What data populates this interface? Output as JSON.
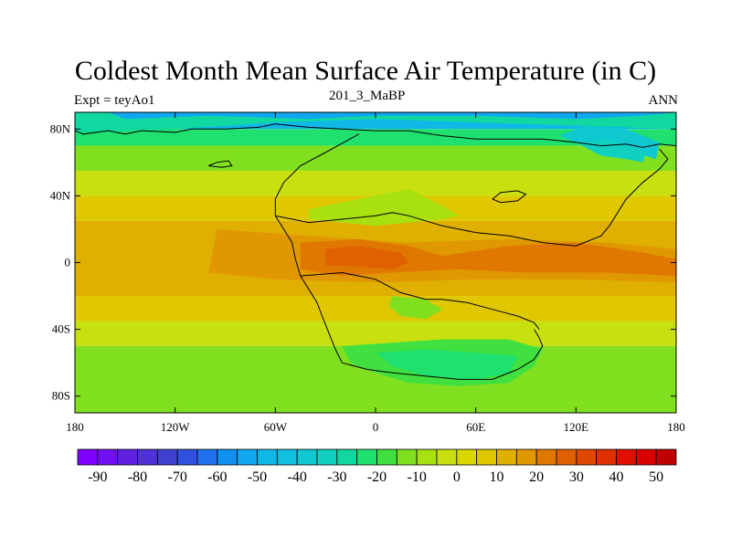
{
  "header": {
    "title": "Coldest Month Mean Surface Air Temperature (in C)",
    "subtitle_left": "Expt = teyAo1",
    "subtitle_center": "201_3_MaBP",
    "subtitle_right": "ANN"
  },
  "map": {
    "projection": "cylindrical-equidistant",
    "lon_range": [
      -180,
      180
    ],
    "lat_range": [
      -90,
      90
    ],
    "x_ticks": [
      {
        "lon": -180,
        "label": "180"
      },
      {
        "lon": -120,
        "label": "120W"
      },
      {
        "lon": -60,
        "label": "60W"
      },
      {
        "lon": 0,
        "label": "0"
      },
      {
        "lon": 60,
        "label": "60E"
      },
      {
        "lon": 120,
        "label": "120E"
      },
      {
        "lon": 180,
        "label": "180"
      }
    ],
    "y_ticks": [
      {
        "lat": 80,
        "label": "80N"
      },
      {
        "lat": 40,
        "label": "40N"
      },
      {
        "lat": 0,
        "label": "0"
      },
      {
        "lat": -40,
        "label": "40S"
      },
      {
        "lat": -80,
        "label": "80S"
      }
    ]
  },
  "colorbar": {
    "min": -95,
    "max": 55,
    "step": 5,
    "colors": [
      "#7f00ff",
      "#7010f0",
      "#6020e0",
      "#5030d8",
      "#4040d0",
      "#3050e0",
      "#2070f0",
      "#1090f0",
      "#10a8f0",
      "#10b8e8",
      "#10c0e0",
      "#10c8d0",
      "#10d0c0",
      "#10d8a0",
      "#20e070",
      "#40e040",
      "#80e020",
      "#a8e010",
      "#c8e010",
      "#d8d800",
      "#e0c800",
      "#e0b000",
      "#e09800",
      "#e07800",
      "#e06000",
      "#e04800",
      "#e03000",
      "#e01000",
      "#d80000",
      "#c00000"
    ],
    "labels": [
      {
        "value": -90,
        "label": "-90"
      },
      {
        "value": -80,
        "label": "-80"
      },
      {
        "value": -70,
        "label": "-70"
      },
      {
        "value": -60,
        "label": "-60"
      },
      {
        "value": -50,
        "label": "-50"
      },
      {
        "value": -40,
        "label": "-40"
      },
      {
        "value": -30,
        "label": "-30"
      },
      {
        "value": -20,
        "label": "-20"
      },
      {
        "value": -10,
        "label": "-10"
      },
      {
        "value": 0,
        "label": "0"
      },
      {
        "value": 10,
        "label": "10"
      },
      {
        "value": 20,
        "label": "20"
      },
      {
        "value": 30,
        "label": "30"
      },
      {
        "value": 40,
        "label": "40"
      },
      {
        "value": 50,
        "label": "50"
      }
    ]
  },
  "temperature_bands": [
    {
      "lat_top": 90,
      "lat_bottom": 80,
      "value": -30,
      "color": "#10b8e8"
    },
    {
      "lat_top": 80,
      "lat_bottom": 70,
      "value": -10,
      "color": "#20e070"
    },
    {
      "lat_top": 70,
      "lat_bottom": 55,
      "value": 0,
      "color": "#80e020"
    },
    {
      "lat_top": 55,
      "lat_bottom": 40,
      "value": 10,
      "color": "#c8e010"
    },
    {
      "lat_top": 40,
      "lat_bottom": 25,
      "value": 20,
      "color": "#e0c800"
    },
    {
      "lat_top": 25,
      "lat_bottom": -20,
      "value": 25,
      "color": "#e0b000"
    },
    {
      "lat_top": -20,
      "lat_bottom": -35,
      "value": 20,
      "color": "#e0c800"
    },
    {
      "lat_top": -35,
      "lat_bottom": -50,
      "value": 10,
      "color": "#c8e010"
    },
    {
      "lat_top": -50,
      "lat_bottom": -90,
      "value": 0,
      "color": "#80e020"
    }
  ],
  "temperature_regions": [
    {
      "value": -15,
      "color": "#10d8a0",
      "points": [
        [
          -180,
          78
        ],
        [
          -120,
          80
        ],
        [
          -60,
          84
        ],
        [
          0,
          86
        ],
        [
          60,
          84
        ],
        [
          120,
          82
        ],
        [
          180,
          80
        ],
        [
          180,
          90
        ],
        [
          -180,
          90
        ]
      ]
    },
    {
      "value": -35,
      "color": "#10a8f0",
      "points": [
        [
          -160,
          90
        ],
        [
          -150,
          86
        ],
        [
          -100,
          88
        ],
        [
          -40,
          86
        ],
        [
          0,
          88
        ],
        [
          60,
          88
        ],
        [
          120,
          86
        ],
        [
          160,
          88
        ],
        [
          180,
          90
        ]
      ]
    },
    {
      "value": -25,
      "color": "#10c8d0",
      "points": [
        [
          110,
          76
        ],
        [
          130,
          68
        ],
        [
          155,
          66
        ],
        [
          168,
          62
        ],
        [
          170,
          72
        ],
        [
          150,
          80
        ],
        [
          125,
          82
        ]
      ]
    },
    {
      "value": -20,
      "color": "#10d0c0",
      "points": [
        [
          120,
          72
        ],
        [
          135,
          64
        ],
        [
          150,
          62
        ],
        [
          160,
          60
        ],
        [
          162,
          66
        ],
        [
          140,
          74
        ]
      ]
    },
    {
      "value": 30,
      "color": "#e09800",
      "points": [
        [
          -95,
          20
        ],
        [
          -40,
          16
        ],
        [
          20,
          12
        ],
        [
          80,
          14
        ],
        [
          140,
          12
        ],
        [
          180,
          8
        ],
        [
          180,
          -12
        ],
        [
          120,
          -10
        ],
        [
          60,
          -10
        ],
        [
          0,
          -12
        ],
        [
          -60,
          -10
        ],
        [
          -100,
          -6
        ]
      ]
    },
    {
      "value": 35,
      "color": "#e07800",
      "points": [
        [
          -45,
          12
        ],
        [
          -10,
          14
        ],
        [
          20,
          10
        ],
        [
          40,
          4
        ],
        [
          80,
          10
        ],
        [
          120,
          12
        ],
        [
          160,
          6
        ],
        [
          180,
          2
        ],
        [
          180,
          -8
        ],
        [
          140,
          -6
        ],
        [
          90,
          -6
        ],
        [
          50,
          -4
        ],
        [
          10,
          -6
        ],
        [
          -20,
          -8
        ],
        [
          -45,
          -4
        ]
      ]
    },
    {
      "value": 40,
      "color": "#e06000",
      "points": [
        [
          -30,
          8
        ],
        [
          -10,
          10
        ],
        [
          15,
          6
        ],
        [
          20,
          0
        ],
        [
          10,
          -4
        ],
        [
          -15,
          -2
        ],
        [
          -30,
          -2
        ]
      ]
    },
    {
      "value": 5,
      "color": "#a8e010",
      "points": [
        [
          -40,
          32
        ],
        [
          -20,
          36
        ],
        [
          0,
          40
        ],
        [
          20,
          44
        ],
        [
          40,
          34
        ],
        [
          50,
          28
        ],
        [
          40,
          26
        ],
        [
          20,
          24
        ],
        [
          0,
          22
        ],
        [
          -20,
          24
        ],
        [
          -40,
          26
        ]
      ]
    },
    {
      "value": -5,
      "color": "#40e040",
      "points": [
        [
          -20,
          -50
        ],
        [
          10,
          -48
        ],
        [
          40,
          -46
        ],
        [
          80,
          -46
        ],
        [
          100,
          -52
        ],
        [
          95,
          -62
        ],
        [
          80,
          -72
        ],
        [
          50,
          -74
        ],
        [
          20,
          -72
        ],
        [
          0,
          -66
        ],
        [
          -15,
          -60
        ]
      ]
    },
    {
      "value": -10,
      "color": "#20e070",
      "points": [
        [
          0,
          -54
        ],
        [
          30,
          -52
        ],
        [
          60,
          -54
        ],
        [
          85,
          -56
        ],
        [
          80,
          -66
        ],
        [
          60,
          -70
        ],
        [
          30,
          -68
        ],
        [
          10,
          -62
        ]
      ]
    },
    {
      "value": 0,
      "color": "#80e020",
      "points": [
        [
          10,
          -20
        ],
        [
          30,
          -22
        ],
        [
          40,
          -28
        ],
        [
          30,
          -34
        ],
        [
          15,
          -32
        ],
        [
          8,
          -26
        ]
      ]
    }
  ],
  "coastlines": [
    {
      "name": "north-coast",
      "points": [
        [
          -180,
          79
        ],
        [
          -175,
          77
        ],
        [
          -160,
          79
        ],
        [
          -150,
          77
        ],
        [
          -140,
          79
        ],
        [
          -120,
          78
        ],
        [
          -110,
          80
        ],
        [
          -90,
          80
        ],
        [
          -70,
          81
        ],
        [
          -60,
          83
        ],
        [
          -40,
          81
        ],
        [
          -20,
          80
        ],
        [
          0,
          79
        ],
        [
          20,
          79
        ],
        [
          40,
          76
        ],
        [
          60,
          74
        ],
        [
          80,
          74
        ],
        [
          100,
          74
        ],
        [
          120,
          72
        ],
        [
          135,
          70
        ],
        [
          150,
          71
        ],
        [
          160,
          69
        ],
        [
          170,
          71
        ],
        [
          180,
          70
        ]
      ]
    },
    {
      "name": "western-margin",
      "points": [
        [
          -10,
          77
        ],
        [
          -28,
          67
        ],
        [
          -45,
          58
        ],
        [
          -55,
          48
        ],
        [
          -60,
          38
        ],
        [
          -60,
          28
        ],
        [
          -55,
          20
        ],
        [
          -50,
          12
        ],
        [
          -48,
          2
        ],
        [
          -45,
          -8
        ],
        [
          -40,
          -16
        ],
        [
          -35,
          -24
        ],
        [
          -32,
          -32
        ],
        [
          -28,
          -42
        ],
        [
          -24,
          -52
        ],
        [
          -20,
          -60
        ]
      ]
    },
    {
      "name": "south-coast",
      "points": [
        [
          -20,
          -60
        ],
        [
          -5,
          -64
        ],
        [
          10,
          -66
        ],
        [
          30,
          -68
        ],
        [
          50,
          -70
        ],
        [
          70,
          -70
        ],
        [
          85,
          -64
        ],
        [
          95,
          -58
        ],
        [
          100,
          -50
        ],
        [
          98,
          -45
        ],
        [
          95,
          -40
        ]
      ]
    },
    {
      "name": "tethys-north",
      "points": [
        [
          -60,
          28
        ],
        [
          -40,
          24
        ],
        [
          -20,
          26
        ],
        [
          0,
          28
        ],
        [
          10,
          30
        ],
        [
          20,
          28
        ],
        [
          40,
          22
        ],
        [
          60,
          18
        ],
        [
          80,
          16
        ],
        [
          100,
          12
        ],
        [
          120,
          10
        ],
        [
          135,
          16
        ],
        [
          140,
          22
        ],
        [
          145,
          30
        ],
        [
          150,
          38
        ],
        [
          160,
          48
        ],
        [
          170,
          56
        ],
        [
          175,
          62
        ],
        [
          170,
          68
        ]
      ]
    },
    {
      "name": "tethys-south",
      "points": [
        [
          -45,
          -8
        ],
        [
          -20,
          -6
        ],
        [
          0,
          -10
        ],
        [
          15,
          -18
        ],
        [
          30,
          -22
        ],
        [
          40,
          -22
        ],
        [
          55,
          -24
        ],
        [
          70,
          -28
        ],
        [
          85,
          -32
        ],
        [
          95,
          -36
        ],
        [
          98,
          -40
        ]
      ]
    },
    {
      "name": "inland-sea",
      "points": [
        [
          70,
          38
        ],
        [
          75,
          42
        ],
        [
          85,
          43
        ],
        [
          90,
          41
        ],
        [
          85,
          37
        ],
        [
          75,
          36
        ],
        [
          70,
          38
        ]
      ]
    },
    {
      "name": "island-arc",
      "points": [
        [
          -100,
          58
        ],
        [
          -95,
          60
        ],
        [
          -88,
          61
        ],
        [
          -86,
          58
        ],
        [
          -92,
          57
        ],
        [
          -100,
          58
        ]
      ]
    }
  ]
}
